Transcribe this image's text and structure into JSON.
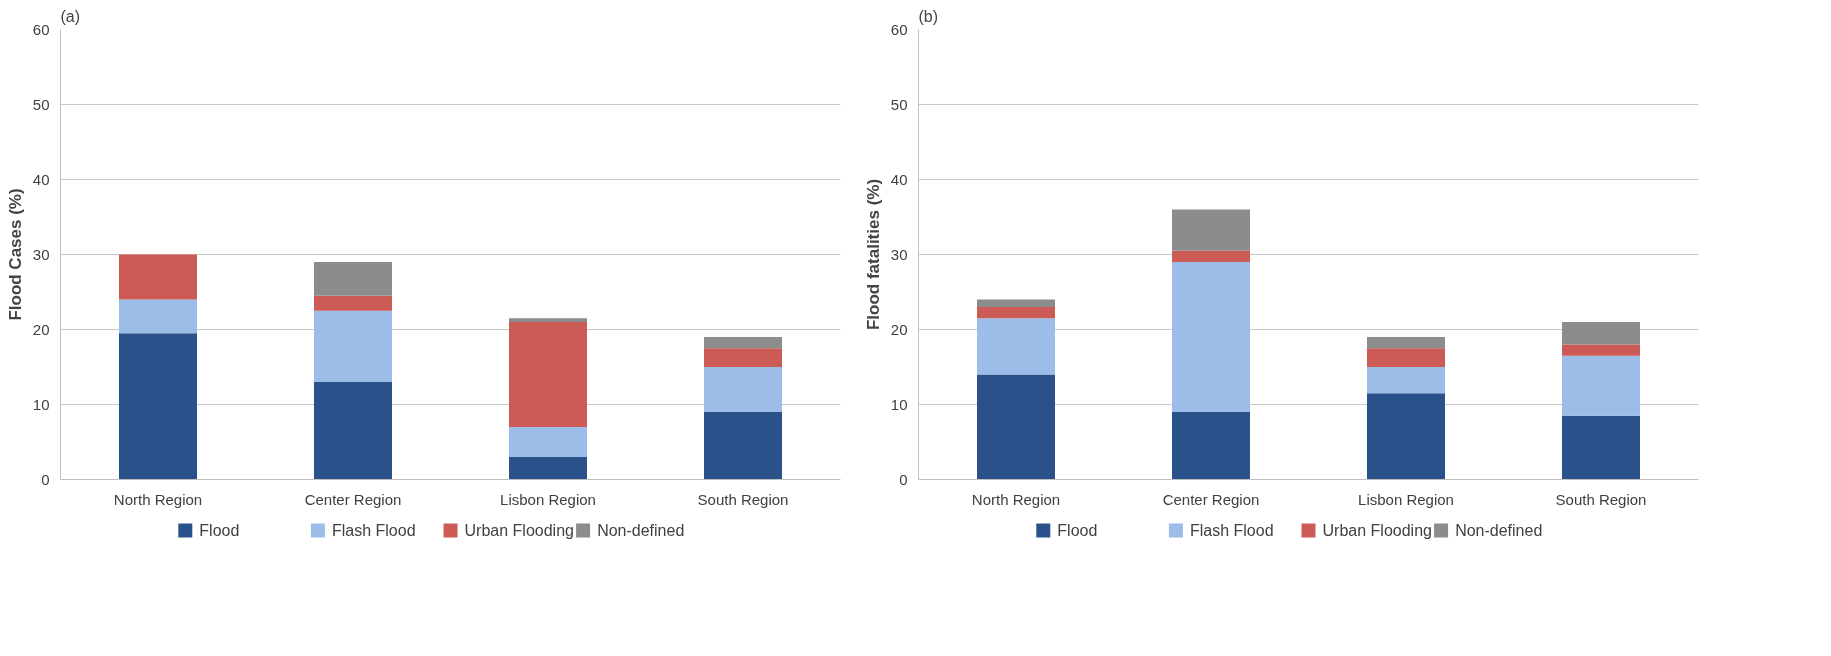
{
  "chart_data": [
    {
      "type": "bar",
      "title": "(a)",
      "ylabel": "Flood Cases (%)",
      "stacked": true,
      "categories": [
        "North Region",
        "Center Region",
        "Lisbon Region",
        "South Region"
      ],
      "ylim": [
        0,
        60
      ],
      "yticks": [
        0,
        10,
        20,
        30,
        40,
        50,
        60
      ],
      "grid": "y",
      "legend": "bottom",
      "series": [
        {
          "name": "Flood",
          "color": "#2a5189",
          "values": [
            19.5,
            13,
            3,
            9
          ]
        },
        {
          "name": "Flash Flood",
          "color": "#9bbde8",
          "values": [
            4.5,
            9.5,
            4,
            6
          ]
        },
        {
          "name": "Urban Flooding",
          "color": "#cd5b55",
          "values": [
            6,
            2,
            14,
            2.5
          ]
        },
        {
          "name": "Non-defined",
          "color": "#8c8c8c",
          "values": [
            0,
            4.5,
            0.5,
            1.5
          ]
        }
      ]
    },
    {
      "type": "bar",
      "title": "(b)",
      "ylabel": "Flood fatalities (%)",
      "stacked": true,
      "categories": [
        "North Region",
        "Center Region",
        "Lisbon Region",
        "South Region"
      ],
      "ylim": [
        0,
        60
      ],
      "yticks": [
        0,
        10,
        20,
        30,
        40,
        50,
        60
      ],
      "grid": "y",
      "legend": "bottom",
      "series": [
        {
          "name": "Flood",
          "color": "#2a5189",
          "values": [
            14,
            9,
            11.5,
            8.5
          ]
        },
        {
          "name": "Flash Flood",
          "color": "#9bbde8",
          "values": [
            7.5,
            20,
            3.5,
            8
          ]
        },
        {
          "name": "Urban Flooding",
          "color": "#cd5b55",
          "values": [
            1.5,
            1.5,
            2.5,
            1.5
          ]
        },
        {
          "name": "Non-defined",
          "color": "#8c8c8c",
          "values": [
            1,
            5.5,
            1.5,
            3
          ]
        }
      ]
    }
  ]
}
